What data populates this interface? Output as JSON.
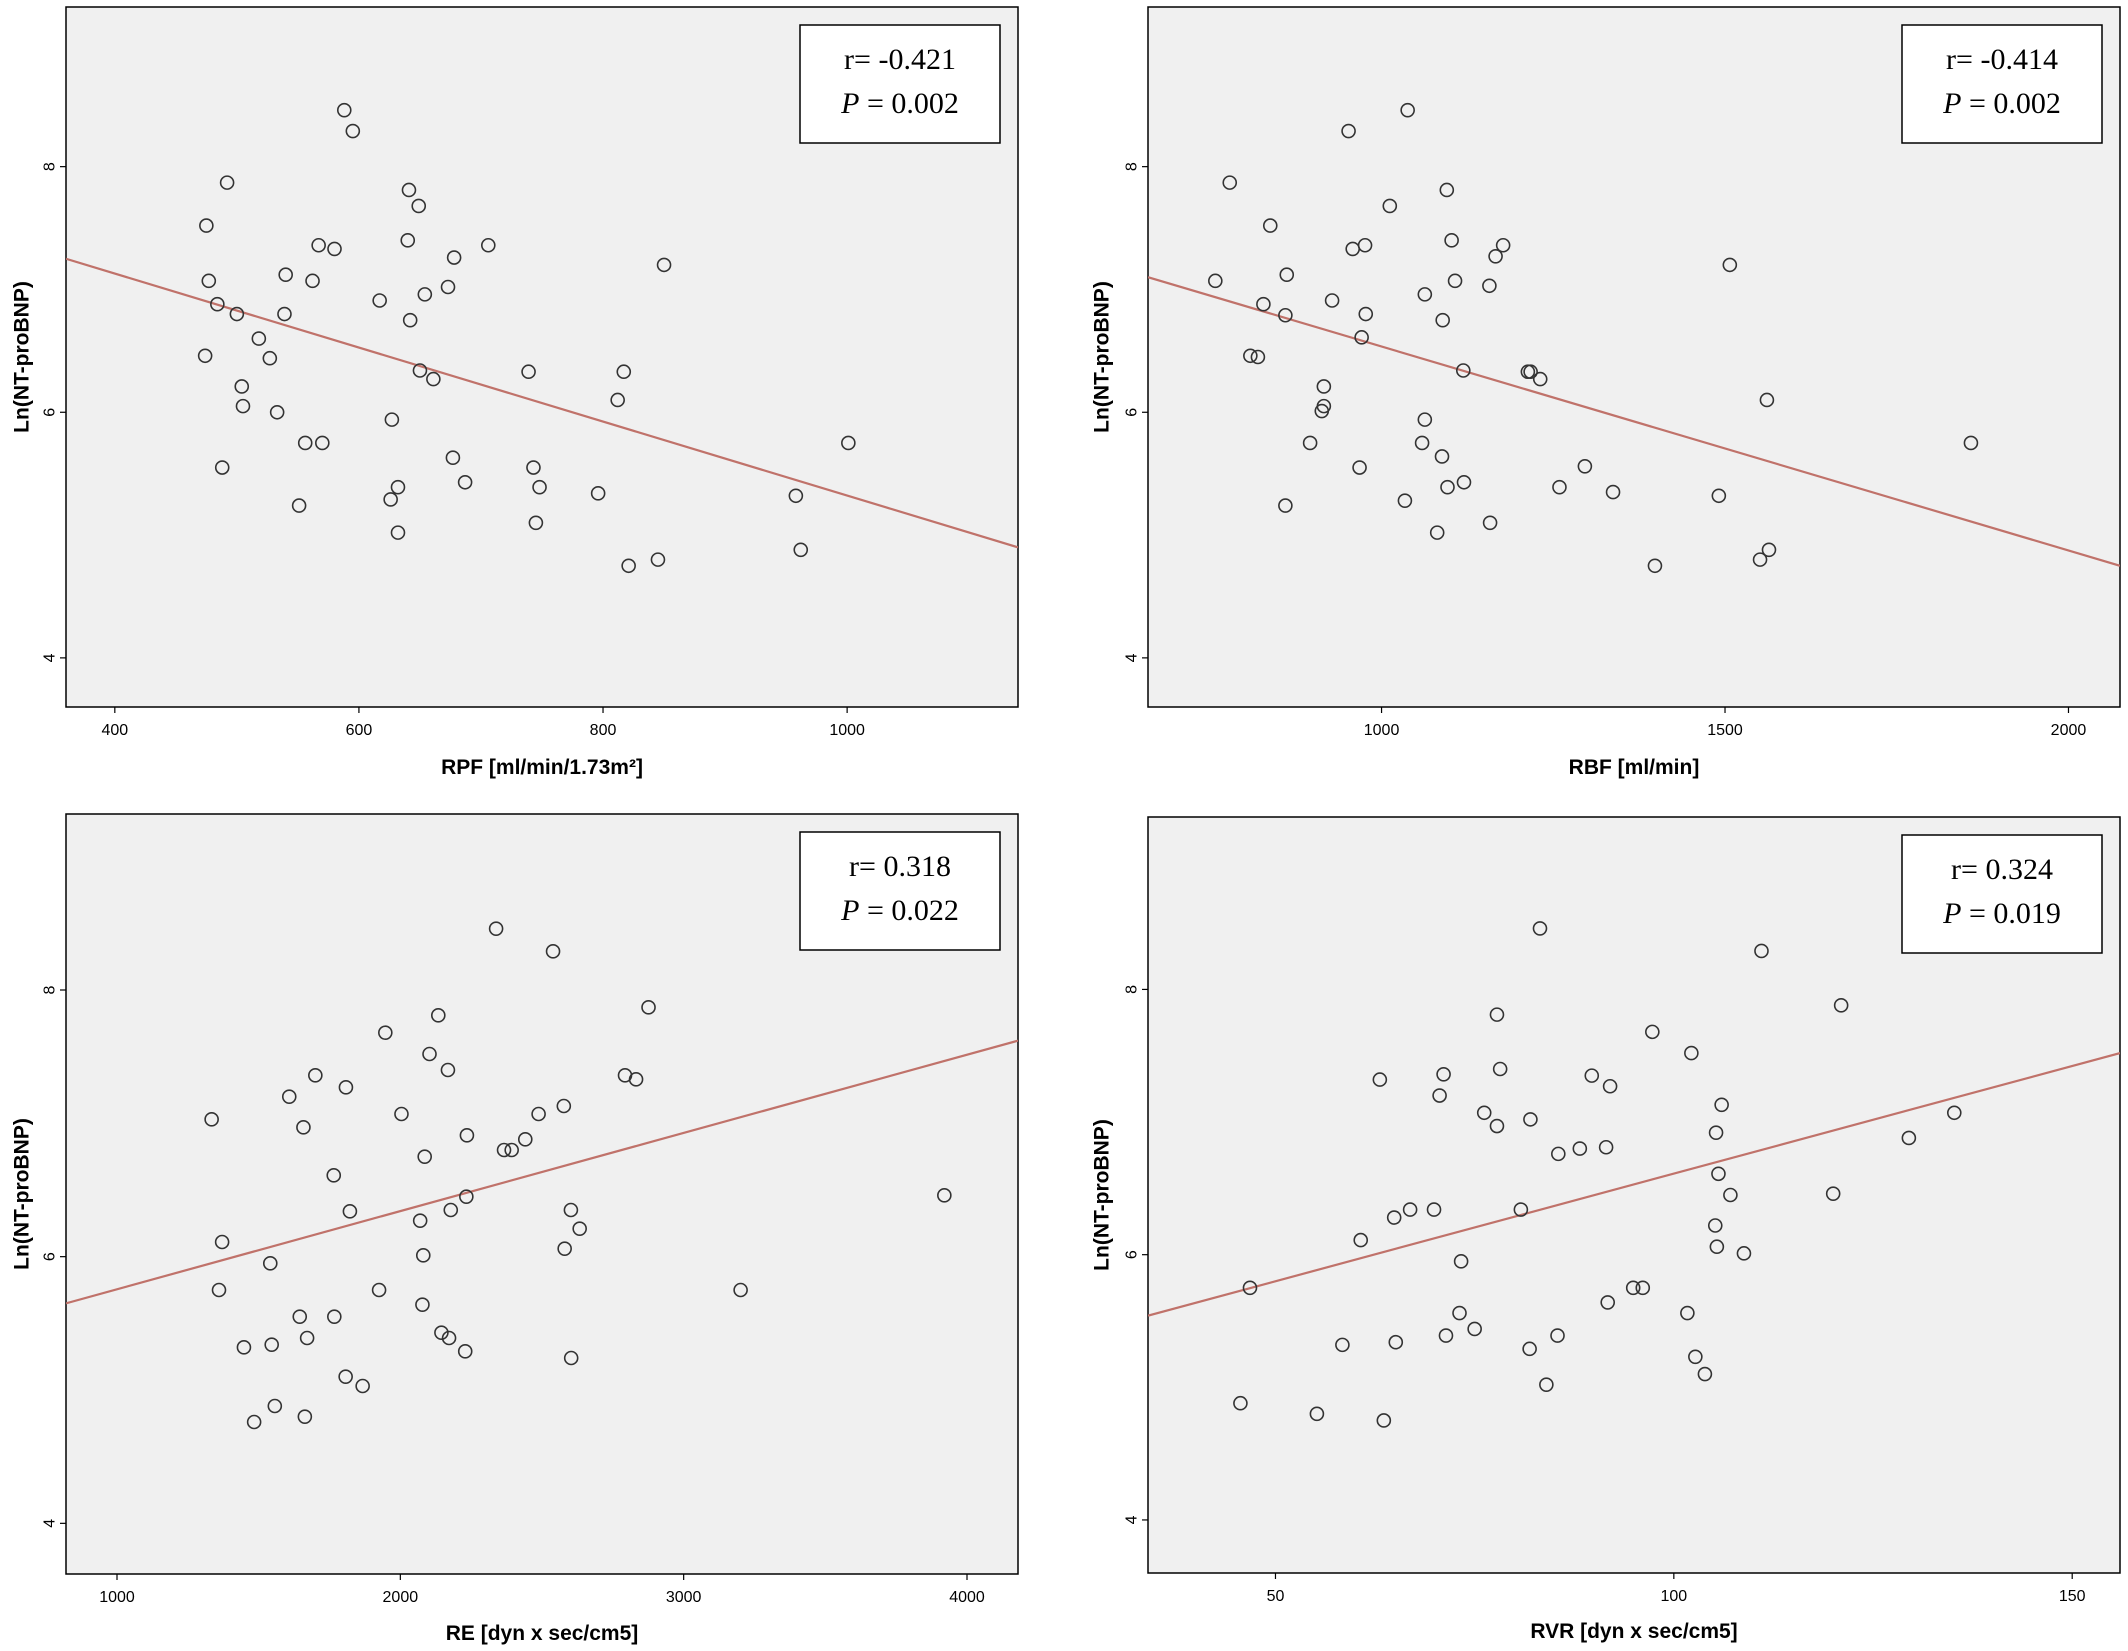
{
  "chart_data": [
    {
      "type": "scatter",
      "title": "",
      "xlabel": "RPF [ml/min/1.73m²]",
      "ylabel": "Ln(NT-proBNP)",
      "xlim": [
        360,
        1140
      ],
      "ylim": [
        3.6,
        9.3
      ],
      "xticks": [
        400,
        600,
        800,
        1000
      ],
      "yticks": [
        4,
        6,
        8
      ],
      "grid": false,
      "annotation": {
        "r_text": "r= -0.421",
        "p_label": "P",
        "p_value": " = 0.002",
        "position": "top-right"
      },
      "fit_line": [
        [
          360,
          7.25
        ],
        [
          1140,
          4.9
        ]
      ],
      "points": [
        [
          588,
          8.46
        ],
        [
          595,
          8.29
        ],
        [
          492,
          7.87
        ],
        [
          641,
          7.81
        ],
        [
          649,
          7.68
        ],
        [
          475,
          7.52
        ],
        [
          567,
          7.36
        ],
        [
          580,
          7.33
        ],
        [
          706,
          7.36
        ],
        [
          640,
          7.4
        ],
        [
          678,
          7.26
        ],
        [
          850,
          7.2
        ],
        [
          540,
          7.12
        ],
        [
          477,
          7.07
        ],
        [
          562,
          7.07
        ],
        [
          654,
          6.96
        ],
        [
          673,
          7.02
        ],
        [
          617,
          6.91
        ],
        [
          484,
          6.88
        ],
        [
          500,
          6.8
        ],
        [
          539,
          6.8
        ],
        [
          642,
          6.75
        ],
        [
          518,
          6.6
        ],
        [
          527,
          6.44
        ],
        [
          474,
          6.46
        ],
        [
          650,
          6.34
        ],
        [
          739,
          6.33
        ],
        [
          817,
          6.33
        ],
        [
          661,
          6.27
        ],
        [
          504,
          6.21
        ],
        [
          812,
          6.1
        ],
        [
          505,
          6.05
        ],
        [
          533,
          6.0
        ],
        [
          627,
          5.94
        ],
        [
          556,
          5.75
        ],
        [
          570,
          5.75
        ],
        [
          1001,
          5.75
        ],
        [
          677,
          5.63
        ],
        [
          488,
          5.55
        ],
        [
          743,
          5.55
        ],
        [
          687,
          5.43
        ],
        [
          632,
          5.39
        ],
        [
          748,
          5.39
        ],
        [
          796,
          5.34
        ],
        [
          958,
          5.32
        ],
        [
          626,
          5.29
        ],
        [
          551,
          5.24
        ],
        [
          745,
          5.1
        ],
        [
          632,
          5.02
        ],
        [
          962,
          4.88
        ],
        [
          845,
          4.8
        ],
        [
          821,
          4.75
        ]
      ]
    },
    {
      "type": "scatter",
      "title": "",
      "xlabel": "RBF [ml/min]",
      "ylabel": "Ln(NT-proBNP)",
      "xlim": [
        660,
        2075
      ],
      "ylim": [
        3.6,
        9.3
      ],
      "xticks": [
        1000,
        1500,
        2000
      ],
      "yticks": [
        4,
        6,
        8
      ],
      "grid": false,
      "annotation": {
        "r_text": "r= -0.414",
        "p_label": "P",
        "p_value": " = 0.002",
        "position": "top-right"
      },
      "fit_line": [
        [
          660,
          7.1
        ],
        [
          2075,
          4.75
        ]
      ],
      "points": [
        [
          1038,
          8.46
        ],
        [
          952,
          8.29
        ],
        [
          779,
          7.87
        ],
        [
          1095,
          7.81
        ],
        [
          1012,
          7.68
        ],
        [
          838,
          7.52
        ],
        [
          1102,
          7.4
        ],
        [
          976,
          7.36
        ],
        [
          1177,
          7.36
        ],
        [
          958,
          7.33
        ],
        [
          1166,
          7.27
        ],
        [
          1507,
          7.2
        ],
        [
          862,
          7.12
        ],
        [
          1107,
          7.07
        ],
        [
          1157,
          7.03
        ],
        [
          758,
          7.07
        ],
        [
          1063,
          6.96
        ],
        [
          928,
          6.91
        ],
        [
          828,
          6.88
        ],
        [
          977,
          6.8
        ],
        [
          860,
          6.79
        ],
        [
          1089,
          6.75
        ],
        [
          971,
          6.61
        ],
        [
          809,
          6.46
        ],
        [
          820,
          6.45
        ],
        [
          1119,
          6.34
        ],
        [
          1213,
          6.33
        ],
        [
          1217,
          6.33
        ],
        [
          1231,
          6.27
        ],
        [
          916,
          6.21
        ],
        [
          1561,
          6.1
        ],
        [
          916,
          6.05
        ],
        [
          913,
          6.01
        ],
        [
          1063,
          5.94
        ],
        [
          896,
          5.75
        ],
        [
          1059,
          5.75
        ],
        [
          1858,
          5.75
        ],
        [
          1088,
          5.64
        ],
        [
          1296,
          5.56
        ],
        [
          968,
          5.55
        ],
        [
          1120,
          5.43
        ],
        [
          1096,
          5.39
        ],
        [
          1259,
          5.39
        ],
        [
          1337,
          5.35
        ],
        [
          1491,
          5.32
        ],
        [
          1034,
          5.28
        ],
        [
          860,
          5.24
        ],
        [
          1158,
          5.1
        ],
        [
          1081,
          5.02
        ],
        [
          1564,
          4.88
        ],
        [
          1551,
          4.8
        ],
        [
          1398,
          4.75
        ]
      ]
    },
    {
      "type": "scatter",
      "title": "",
      "xlabel": "RE [dyn x sec/cm5]",
      "ylabel": "Ln(NT-proBNP)",
      "xlim": [
        820,
        4180
      ],
      "ylim": [
        3.62,
        9.32
      ],
      "xticks": [
        1000,
        2000,
        3000,
        4000
      ],
      "yticks": [
        4,
        6,
        8
      ],
      "grid": false,
      "annotation": {
        "r_text": "r= 0.318",
        "p_label": "P",
        "p_value": " = 0.022",
        "position": "top-right"
      },
      "fit_line": [
        [
          820,
          5.65
        ],
        [
          4180,
          7.62
        ]
      ],
      "points": [
        [
          2338,
          8.46
        ],
        [
          2539,
          8.29
        ],
        [
          2876,
          7.87
        ],
        [
          2134,
          7.81
        ],
        [
          1947,
          7.68
        ],
        [
          2103,
          7.52
        ],
        [
          1700,
          7.36
        ],
        [
          2793,
          7.36
        ],
        [
          2832,
          7.33
        ],
        [
          2168,
          7.4
        ],
        [
          1808,
          7.27
        ],
        [
          1608,
          7.2
        ],
        [
          2577,
          7.13
        ],
        [
          2488,
          7.07
        ],
        [
          2004,
          7.07
        ],
        [
          1334,
          7.03
        ],
        [
          1658,
          6.97
        ],
        [
          2235,
          6.91
        ],
        [
          2441,
          6.88
        ],
        [
          2366,
          6.8
        ],
        [
          2393,
          6.8
        ],
        [
          2086,
          6.75
        ],
        [
          1765,
          6.61
        ],
        [
          2233,
          6.45
        ],
        [
          3920,
          6.46
        ],
        [
          1822,
          6.34
        ],
        [
          2178,
          6.35
        ],
        [
          2602,
          6.35
        ],
        [
          2070,
          6.27
        ],
        [
          2633,
          6.21
        ],
        [
          1371,
          6.11
        ],
        [
          2580,
          6.06
        ],
        [
          2081,
          6.01
        ],
        [
          1541,
          5.95
        ],
        [
          1360,
          5.75
        ],
        [
          1925,
          5.75
        ],
        [
          3201,
          5.75
        ],
        [
          2078,
          5.64
        ],
        [
          1645,
          5.55
        ],
        [
          1767,
          5.55
        ],
        [
          2145,
          5.43
        ],
        [
          1671,
          5.39
        ],
        [
          2172,
          5.39
        ],
        [
          1546,
          5.34
        ],
        [
          1448,
          5.32
        ],
        [
          2229,
          5.29
        ],
        [
          2603,
          5.24
        ],
        [
          1807,
          5.1
        ],
        [
          1867,
          5.03
        ],
        [
          1557,
          4.88
        ],
        [
          1663,
          4.8
        ],
        [
          1484,
          4.76
        ]
      ]
    },
    {
      "type": "scatter",
      "title": "",
      "xlabel": "RVR [dyn x sec/cm5]",
      "ylabel": "Ln(NT-proBNP)",
      "xlim": [
        34,
        156
      ],
      "ylim": [
        3.6,
        9.3
      ],
      "xticks": [
        50,
        100,
        150
      ],
      "yticks": [
        4,
        6,
        8
      ],
      "grid": false,
      "annotation": {
        "r_text": "r= 0.324",
        "p_label": "P",
        "p_value": " = 0.019",
        "position": "top-right"
      },
      "fit_line": [
        [
          34,
          5.54
        ],
        [
          156,
          7.52
        ]
      ],
      "points": [
        [
          83.2,
          8.46
        ],
        [
          111.0,
          8.29
        ],
        [
          121.0,
          7.88
        ],
        [
          77.8,
          7.81
        ],
        [
          97.3,
          7.68
        ],
        [
          102.2,
          7.52
        ],
        [
          71.1,
          7.36
        ],
        [
          63.1,
          7.32
        ],
        [
          78.2,
          7.4
        ],
        [
          89.7,
          7.35
        ],
        [
          92.0,
          7.27
        ],
        [
          70.6,
          7.2
        ],
        [
          106.0,
          7.13
        ],
        [
          76.2,
          7.07
        ],
        [
          135.2,
          7.07
        ],
        [
          82.0,
          7.02
        ],
        [
          77.8,
          6.97
        ],
        [
          105.3,
          6.92
        ],
        [
          129.5,
          6.88
        ],
        [
          88.2,
          6.8
        ],
        [
          91.5,
          6.81
        ],
        [
          85.5,
          6.76
        ],
        [
          105.6,
          6.61
        ],
        [
          107.1,
          6.45
        ],
        [
          120.0,
          6.46
        ],
        [
          69.9,
          6.34
        ],
        [
          66.9,
          6.34
        ],
        [
          80.8,
          6.34
        ],
        [
          64.9,
          6.28
        ],
        [
          105.2,
          6.22
        ],
        [
          60.7,
          6.11
        ],
        [
          105.4,
          6.06
        ],
        [
          108.8,
          6.01
        ],
        [
          73.3,
          5.95
        ],
        [
          46.8,
          5.75
        ],
        [
          94.9,
          5.75
        ],
        [
          96.1,
          5.75
        ],
        [
          91.7,
          5.64
        ],
        [
          73.1,
          5.56
        ],
        [
          101.7,
          5.56
        ],
        [
          75.0,
          5.44
        ],
        [
          71.4,
          5.39
        ],
        [
          85.4,
          5.39
        ],
        [
          65.1,
          5.34
        ],
        [
          58.4,
          5.32
        ],
        [
          81.9,
          5.29
        ],
        [
          102.7,
          5.23
        ],
        [
          103.9,
          5.1
        ],
        [
          84.0,
          5.02
        ],
        [
          45.6,
          4.88
        ],
        [
          55.2,
          4.8
        ],
        [
          63.6,
          4.75
        ]
      ]
    }
  ]
}
